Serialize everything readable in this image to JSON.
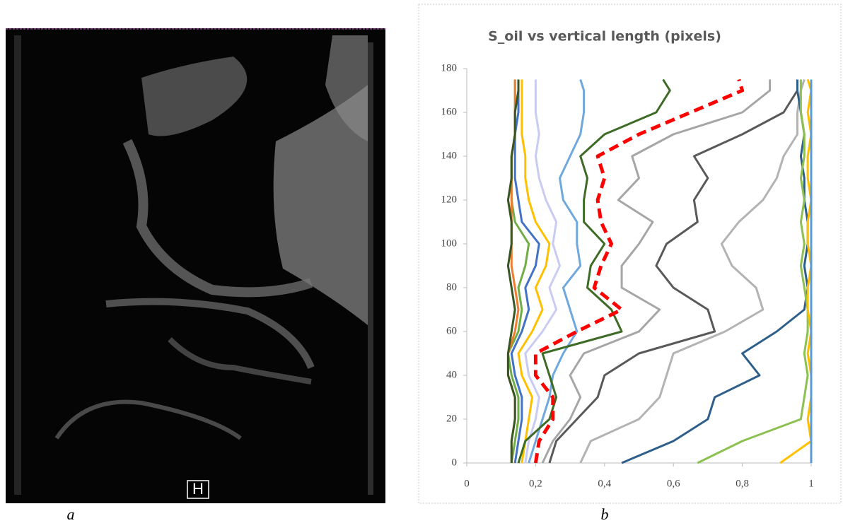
{
  "figure": {
    "label_a": "a",
    "label_b": "b",
    "marker": "H"
  },
  "chart_data": {
    "type": "line",
    "title": "S_oil vs vertical length (pixels)",
    "y": [
      0,
      10,
      20,
      30,
      40,
      50,
      60,
      70,
      80,
      90,
      100,
      110,
      120,
      130,
      140,
      150,
      160,
      170,
      175
    ],
    "xlim": [
      0,
      1
    ],
    "xticks": [
      0,
      {
        "value": 0.2,
        "label": "0,2"
      },
      {
        "value": 0.4,
        "label": "0,4"
      },
      {
        "value": 0.6,
        "label": "0,6"
      },
      {
        "value": 0.8,
        "label": "0,8"
      },
      1
    ],
    "ylim": [
      0,
      180
    ],
    "yticks": [
      0,
      20,
      40,
      60,
      80,
      100,
      120,
      140,
      160,
      180
    ],
    "series": [
      {
        "color": "#c9cbf2",
        "values": [
          0.17,
          0.18,
          0.2,
          0.21,
          0.18,
          0.17,
          0.22,
          0.26,
          0.24,
          0.27,
          0.25,
          0.26,
          0.23,
          0.21,
          0.2,
          0.21,
          0.2,
          0.2,
          0.2
        ]
      },
      {
        "color": "#ffc000",
        "values": [
          0.16,
          0.17,
          0.18,
          0.19,
          0.16,
          0.15,
          0.19,
          0.22,
          0.2,
          0.23,
          0.24,
          0.2,
          0.18,
          0.17,
          0.17,
          0.16,
          0.16,
          0.16,
          0.16
        ]
      },
      {
        "color": "#4472c4",
        "values": [
          0.14,
          0.15,
          0.16,
          0.16,
          0.14,
          0.13,
          0.16,
          0.18,
          0.17,
          0.2,
          0.21,
          0.16,
          0.15,
          0.14,
          0.14,
          0.14,
          0.15,
          0.15,
          0.15
        ]
      },
      {
        "color": "#70ad47",
        "values": [
          0.13,
          0.14,
          0.15,
          0.15,
          0.13,
          0.12,
          0.15,
          0.16,
          0.15,
          0.17,
          0.18,
          0.14,
          0.13,
          0.13,
          0.13,
          0.14,
          0.14,
          0.14,
          0.14
        ]
      },
      {
        "color": "#ed7d31",
        "values": [
          0.13,
          0.13,
          0.14,
          0.14,
          0.12,
          0.12,
          0.14,
          0.15,
          0.14,
          0.13,
          0.13,
          0.13,
          0.13,
          0.13,
          0.13,
          0.14,
          0.14,
          0.14,
          0.14
        ]
      },
      {
        "color": "#375623",
        "values": [
          0.13,
          0.13,
          0.14,
          0.14,
          0.12,
          0.12,
          0.13,
          0.14,
          0.13,
          0.12,
          0.13,
          0.13,
          0.12,
          0.13,
          0.13,
          0.14,
          0.14,
          0.15,
          0.15
        ]
      },
      {
        "color": "#6fa8dc",
        "values": [
          0.18,
          0.2,
          0.22,
          0.24,
          0.25,
          0.28,
          0.32,
          0.3,
          0.28,
          0.33,
          0.32,
          0.32,
          0.28,
          0.27,
          0.3,
          0.33,
          0.34,
          0.34,
          0.33
        ]
      },
      {
        "color": "#a6a6a6",
        "values": [
          0.22,
          0.25,
          0.3,
          0.33,
          0.3,
          0.34,
          0.5,
          0.56,
          0.45,
          0.45,
          0.5,
          0.54,
          0.44,
          0.5,
          0.48,
          0.6,
          0.8,
          0.88,
          0.88
        ]
      },
      {
        "color": "#3e6b25",
        "values": [
          0.15,
          0.17,
          0.24,
          0.26,
          0.24,
          0.22,
          0.45,
          0.42,
          0.35,
          0.36,
          0.4,
          0.34,
          0.34,
          0.35,
          0.33,
          0.4,
          0.55,
          0.59,
          0.57
        ]
      },
      {
        "color": "#ff0000",
        "dashed": true,
        "values": [
          0.2,
          0.21,
          0.25,
          0.25,
          0.2,
          0.2,
          0.32,
          0.45,
          0.37,
          0.39,
          0.42,
          0.39,
          0.38,
          0.4,
          0.38,
          0.5,
          0.65,
          0.8,
          0.79
        ]
      },
      {
        "color": "#595959",
        "values": [
          0.24,
          0.26,
          0.32,
          0.38,
          0.4,
          0.5,
          0.72,
          0.7,
          0.6,
          0.55,
          0.58,
          0.67,
          0.66,
          0.7,
          0.66,
          0.8,
          0.92,
          0.96,
          0.96
        ]
      },
      {
        "color": "#b3b3b3",
        "values": [
          0.33,
          0.36,
          0.5,
          0.56,
          0.58,
          0.6,
          0.75,
          0.86,
          0.84,
          0.77,
          0.74,
          0.79,
          0.86,
          0.9,
          0.92,
          0.96,
          0.96,
          0.97,
          0.98
        ]
      },
      {
        "color": "#2e5f8a",
        "values": [
          0.45,
          0.6,
          0.7,
          0.72,
          0.85,
          0.8,
          0.9,
          0.98,
          0.99,
          0.98,
          0.99,
          0.99,
          0.98,
          0.98,
          0.97,
          0.98,
          0.97,
          0.96,
          0.96
        ]
      },
      {
        "color": "#8cc152",
        "values": [
          0.67,
          0.8,
          0.97,
          0.98,
          0.99,
          0.98,
          0.99,
          0.99,
          0.98,
          0.97,
          0.98,
          0.97,
          0.98,
          0.97,
          0.98,
          0.98,
          0.97,
          0.97,
          0.97
        ]
      },
      {
        "color": "#ffc000",
        "values": [
          0.91,
          1.0,
          0.99,
          1.0,
          1.0,
          0.99,
          1.0,
          0.99,
          0.99,
          1.0,
          0.99,
          0.99,
          1.0,
          0.99,
          0.99,
          1.0,
          0.99,
          1.0,
          0.99
        ]
      },
      {
        "color": "#5b9bd5",
        "values": [
          1.0,
          1.0,
          1.0,
          1.0,
          1.0,
          1.0,
          1.0,
          1.0,
          1.0,
          1.0,
          1.0,
          1.0,
          1.0,
          1.0,
          1.0,
          1.0,
          1.0,
          1.0,
          1.0
        ]
      }
    ]
  }
}
